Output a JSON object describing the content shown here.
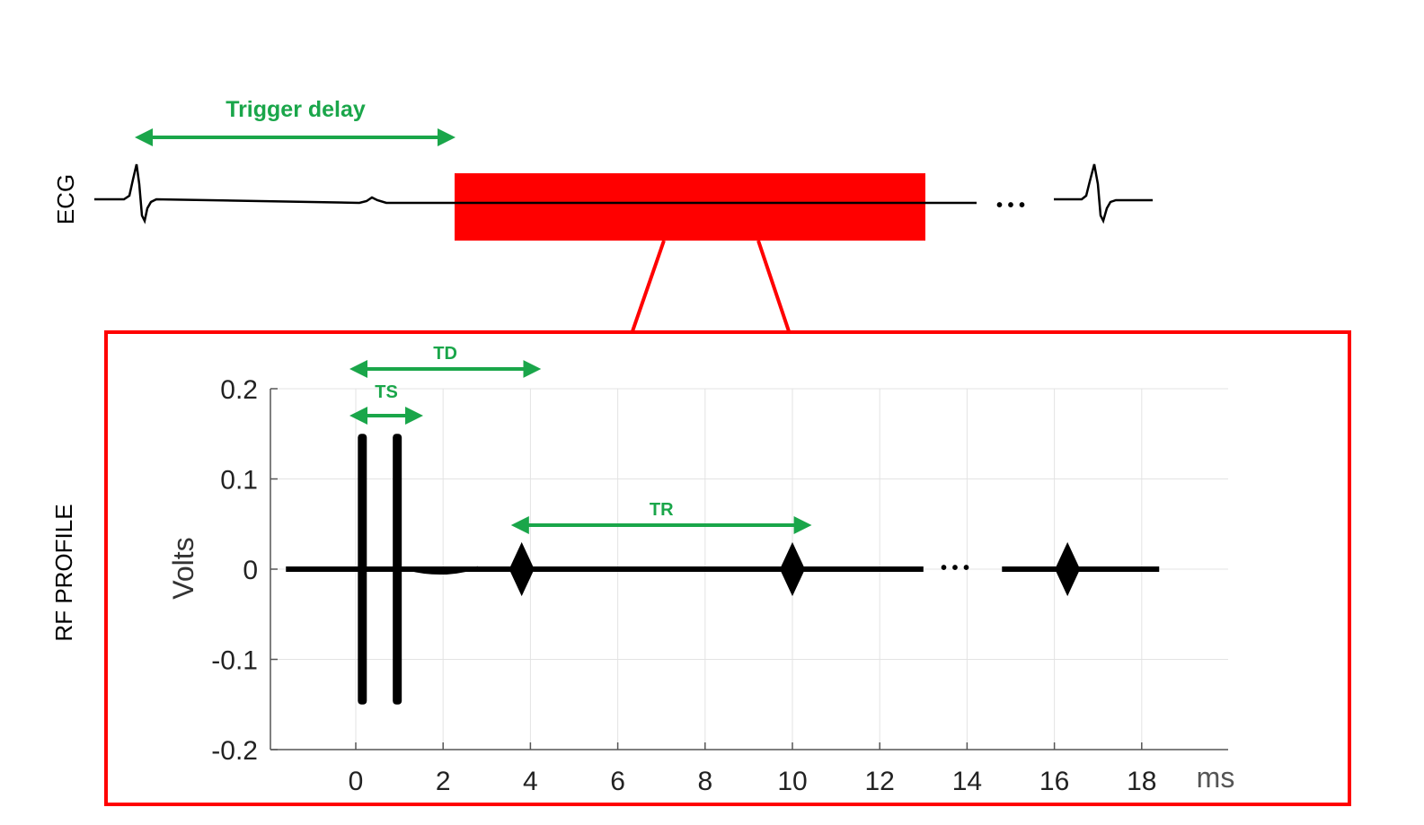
{
  "labels": {
    "ecg": "ECG",
    "rf_profile": "RF PROFILE",
    "trigger_delay": "Trigger delay",
    "td": "TD",
    "ts": "TS",
    "tr": "TR",
    "ellipsis": "• • •"
  },
  "colors": {
    "green": "#1aa64a",
    "red": "#ff0000",
    "trace": "#000000",
    "grid": "#e3e3e3",
    "axis": "#555555"
  },
  "chart_data": {
    "type": "line",
    "xlabel": "ms",
    "ylabel": "Volts",
    "xlim": [
      -2,
      20
    ],
    "ylim": [
      -0.2,
      0.2
    ],
    "x_ticks": [
      0,
      2,
      4,
      6,
      8,
      10,
      12,
      14,
      16,
      18
    ],
    "x_tick_labels": [
      "0",
      "2",
      "4",
      "6",
      "8",
      "10",
      "12",
      "14",
      "16",
      "18"
    ],
    "y_ticks": [
      0.2,
      0.1,
      0,
      -0.1,
      -0.2
    ],
    "y_tick_labels": [
      "0.2",
      "0.1",
      "0",
      "-0.1",
      "-0.2"
    ],
    "grid": true,
    "series": [
      {
        "pulses": [
          {
            "t": 0.15,
            "amplitude": 0.15
          },
          {
            "t": 0.95,
            "amplitude": 0.15
          },
          {
            "t": 3.8,
            "amplitude": 0.03
          },
          {
            "t": 10.0,
            "amplitude": 0.03
          },
          {
            "t": 16.3,
            "amplitude": 0.03
          }
        ],
        "segments": [
          [
            -1.6,
            13.0
          ],
          [
            14.8,
            18.4
          ]
        ]
      }
    ],
    "annotations": [
      {
        "label": "TD",
        "x_start": 0,
        "x_end": 4.1
      },
      {
        "label": "TS",
        "x_start": 0,
        "x_end": 1.4
      },
      {
        "label": "TR",
        "x_start": 3.7,
        "x_end": 10.3
      }
    ]
  }
}
